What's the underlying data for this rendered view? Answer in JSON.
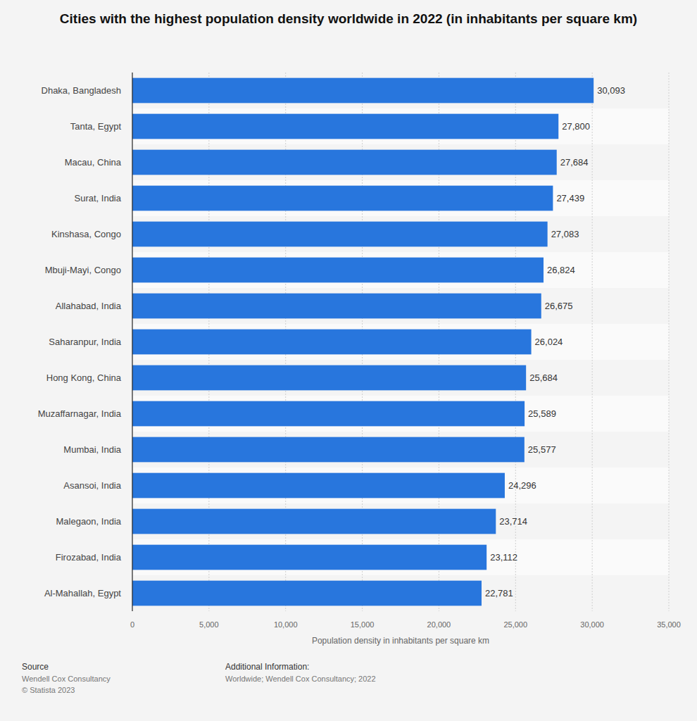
{
  "chart_data": {
    "type": "bar",
    "orientation": "horizontal",
    "title": "Cities with the highest population density worldwide in 2022 (in inhabitants per square km)",
    "x_label": "Population density in inhabitants per square km",
    "categories": [
      "Dhaka, Bangladesh",
      "Tanta, Egypt",
      "Macau, China",
      "Surat, India",
      "Kinshasa, Congo",
      "Mbuji-Mayi, Congo",
      "Allahabad, India",
      "Saharanpur, India",
      "Hong Kong, China",
      "Muzaffarnagar, India",
      "Mumbai, India",
      "Asansoi, India",
      "Malegaon, India",
      "Firozabad, India",
      "Al-Mahallah, Egypt"
    ],
    "values": [
      30093,
      27800,
      27684,
      27439,
      27083,
      26824,
      26675,
      26024,
      25684,
      25589,
      25577,
      24296,
      23714,
      23112,
      22781
    ],
    "value_labels": [
      "30,093",
      "27,800",
      "27,684",
      "27,439",
      "27,083",
      "26,824",
      "26,675",
      "26,024",
      "25,684",
      "25,589",
      "25,577",
      "24,296",
      "23,714",
      "23,112",
      "22,781"
    ],
    "color": "#2876dd",
    "data_labels": true,
    "grid": true,
    "xlim": [
      0,
      35000
    ],
    "xticks": [
      0,
      {
        "value": 5000,
        "label": "5,000"
      },
      {
        "value": 10000,
        "label": "10,000"
      },
      {
        "value": 15000,
        "label": "15,000"
      },
      {
        "value": 20000,
        "label": "20,000"
      },
      {
        "value": 25000,
        "label": "25,000"
      },
      {
        "value": 30000,
        "label": "30,000"
      },
      {
        "value": 35000,
        "label": "35,000"
      }
    ],
    "source": {
      "heading": "Source",
      "lines": [
        "Wendell Cox Consultancy",
        "© Statista 2023"
      ]
    },
    "additional_info": {
      "heading": "Additional Information:",
      "lines": [
        "Worldwide; Wendell Cox Consultancy; 2022"
      ]
    }
  }
}
